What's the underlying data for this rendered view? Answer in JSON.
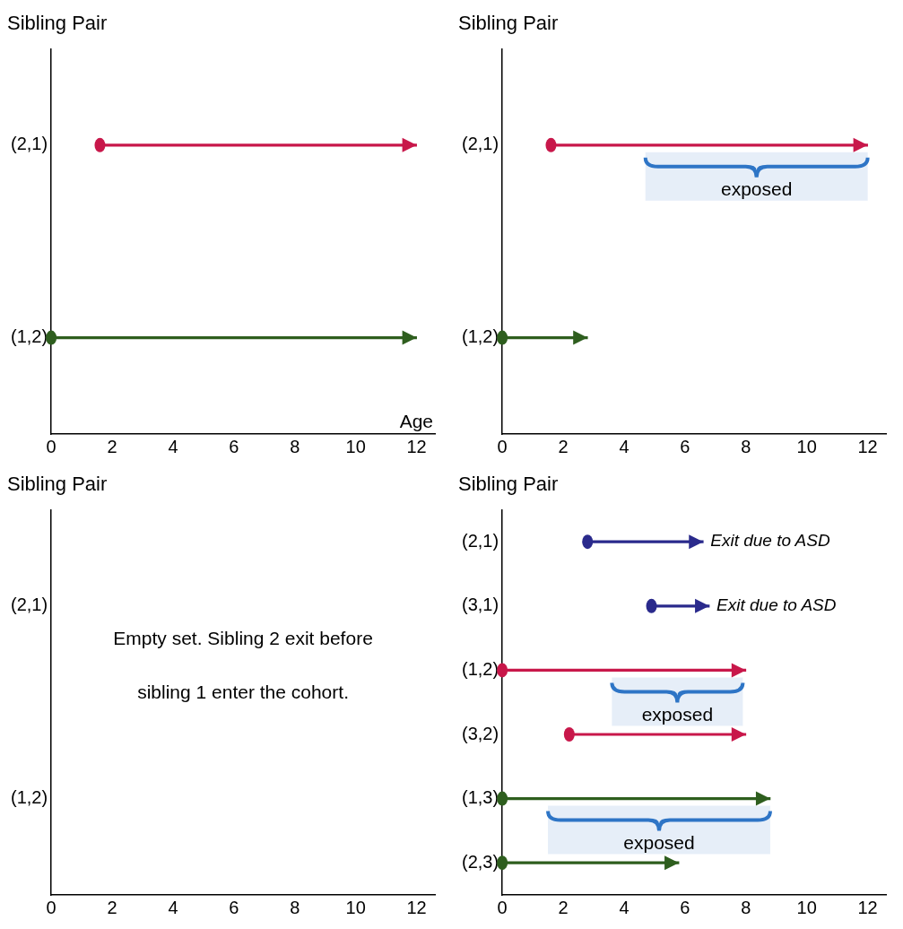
{
  "chart_data": [
    {
      "type": "bar",
      "orientation": "horizontal",
      "title": "Sibling Pair",
      "xlabel": "Age",
      "categories": [
        "(2,1)",
        "(1,2)"
      ],
      "base": [
        1.6,
        0
      ],
      "values": [
        10.4,
        12
      ],
      "colors": [
        "#c8174a",
        "#2e5e1e"
      ],
      "xlim": [
        0,
        12.6
      ],
      "xticks": [
        0,
        2,
        4,
        6,
        8,
        10,
        12
      ]
    },
    {
      "type": "bar",
      "orientation": "horizontal",
      "title": "Sibling Pair",
      "categories": [
        "(2,1)",
        "(1,2)"
      ],
      "base": [
        1.6,
        0
      ],
      "values": [
        10.4,
        2.8
      ],
      "colors": [
        "#c8174a",
        "#2e5e1e"
      ],
      "xlim": [
        0,
        12.6
      ],
      "xticks": [
        0,
        2,
        4,
        6,
        8,
        10,
        12
      ],
      "bands": [
        {
          "axis": "x",
          "from": 4.7,
          "to": 12,
          "label": "exposed",
          "color": "#2e75c6"
        }
      ]
    },
    {
      "type": "bar",
      "orientation": "horizontal",
      "title": "Sibling Pair",
      "categories": [
        "(2,1)",
        "(1,2)"
      ],
      "base": [
        null,
        null
      ],
      "values": [
        null,
        null
      ],
      "colors": [
        "#c8174a",
        "#2e5e1e"
      ],
      "xlim": [
        0,
        12.6
      ],
      "xticks": [
        0,
        2,
        4,
        6,
        8,
        10,
        12
      ],
      "annotations": [
        "Empty set. Sibling 2 exit before",
        "sibling 1 enter the cohort."
      ]
    },
    {
      "type": "bar",
      "orientation": "horizontal",
      "title": "Sibling Pair",
      "categories": [
        "(2,1)",
        "(3,1)",
        "(1,2)",
        "(3,2)",
        "(1,3)",
        "(2,3)"
      ],
      "base": [
        2.8,
        4.9,
        0,
        2.2,
        0,
        0
      ],
      "values": [
        3.8,
        1.9,
        8,
        5.8,
        8.8,
        5.8
      ],
      "colors": [
        "#2a2a8c",
        "#2a2a8c",
        "#c8174a",
        "#c8174a",
        "#2e5e1e",
        "#2e5e1e"
      ],
      "value_labels": [
        "Exit due to ASD",
        "Exit due to ASD",
        null,
        null,
        null,
        null
      ],
      "xlim": [
        0,
        12.6
      ],
      "xticks": [
        0,
        2,
        4,
        6,
        8,
        10,
        12
      ],
      "bands": [
        {
          "axis": "x",
          "from": 3.6,
          "to": 7.9,
          "label": "exposed",
          "color": "#2e75c6"
        },
        {
          "axis": "x",
          "from": 1.5,
          "to": 8.8,
          "label": "exposed",
          "color": "#2e75c6"
        }
      ]
    }
  ]
}
